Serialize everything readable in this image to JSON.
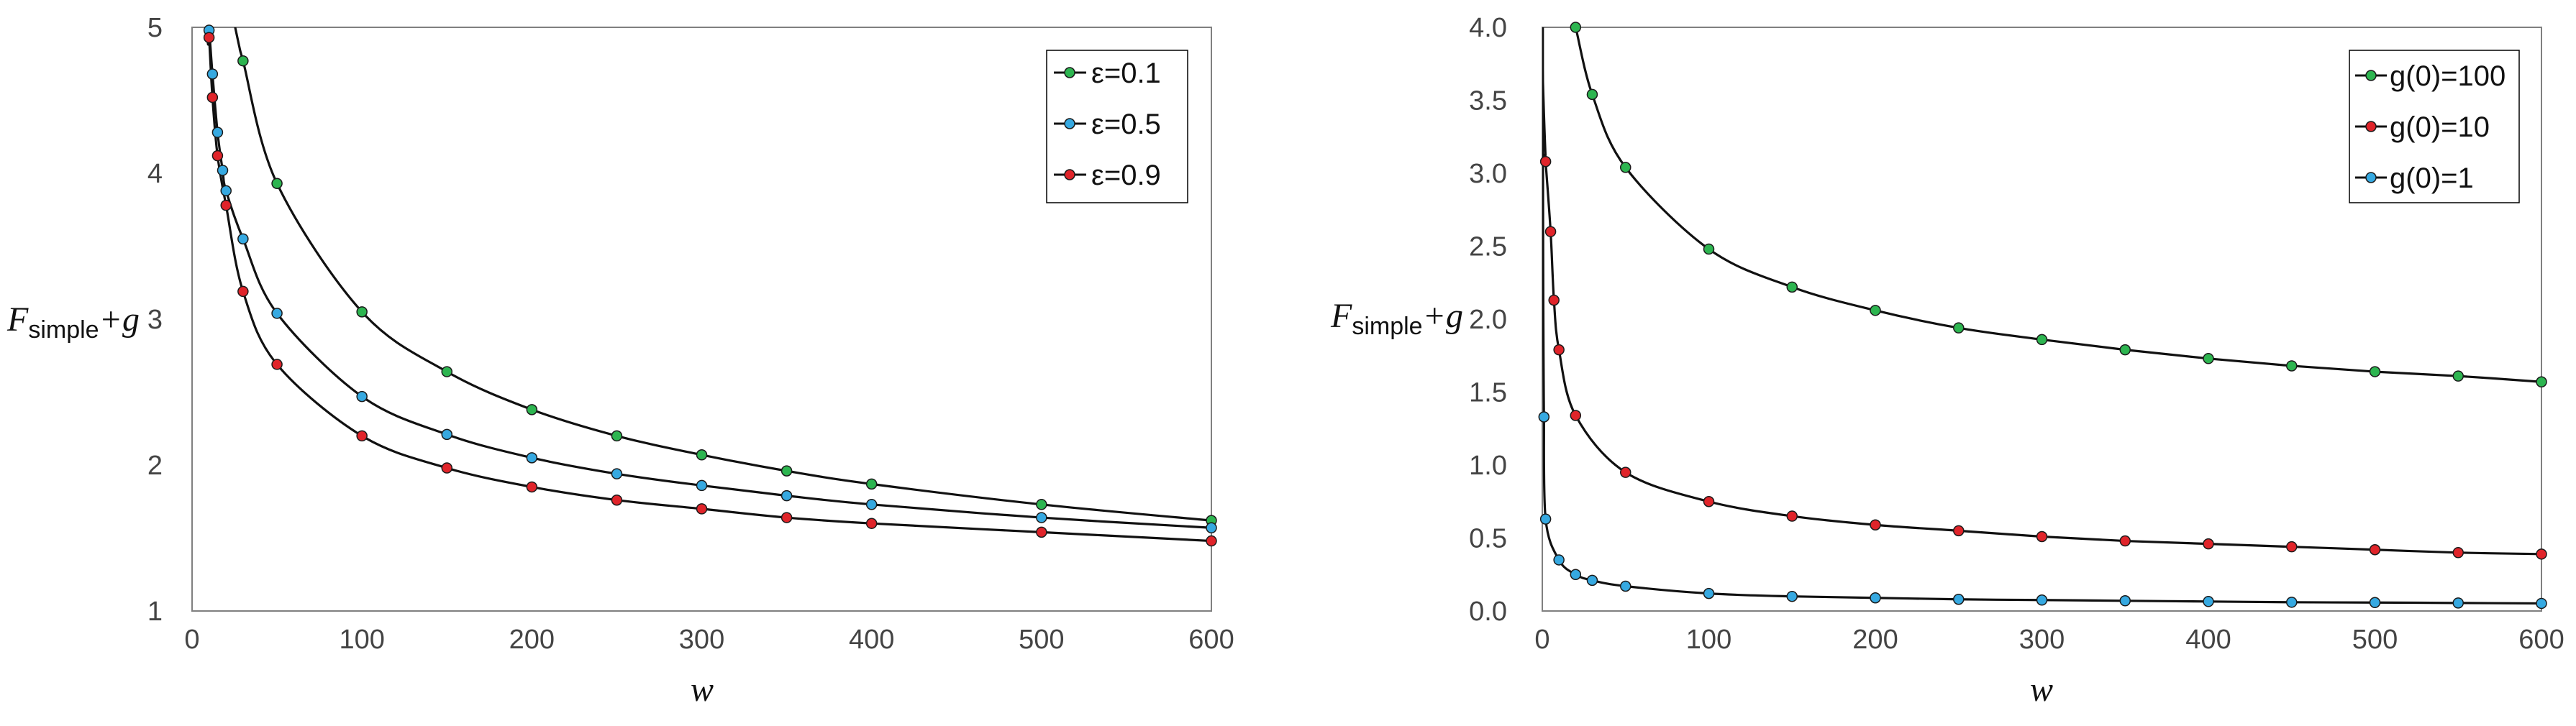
{
  "colors": {
    "green": "#2db550",
    "blue": "#36a9e1",
    "red": "#e0242a",
    "line": "#111111",
    "axis": "#808080"
  },
  "chart_data": [
    {
      "type": "line",
      "xlabel": "w",
      "ylabel_main": "F",
      "ylabel_sub": "simple",
      "ylabel_tail": "+g",
      "xlim": [
        0,
        600
      ],
      "ylim": [
        1,
        5
      ],
      "xticks": [
        "0",
        "100",
        "200",
        "300",
        "400",
        "500",
        "600"
      ],
      "yticks": [
        "1",
        "2",
        "3",
        "4",
        "5"
      ],
      "legend_position": "top-right",
      "series": [
        {
          "name": "ε=0.1",
          "color": "green",
          "x": [
            30,
            50,
            100,
            150,
            200,
            250,
            300,
            350,
            400,
            500,
            600
          ],
          "y": [
            4.77,
            3.93,
            3.05,
            2.64,
            2.38,
            2.2,
            2.07,
            1.96,
            1.87,
            1.73,
            1.62
          ]
        },
        {
          "name": "ε=0.5",
          "color": "blue",
          "x": [
            10,
            12,
            15,
            18,
            20,
            30,
            50,
            100,
            150,
            200,
            250,
            300,
            350,
            400,
            500,
            600
          ],
          "y": [
            4.98,
            4.68,
            4.28,
            4.02,
            3.88,
            3.55,
            3.04,
            2.47,
            2.21,
            2.05,
            1.94,
            1.86,
            1.79,
            1.73,
            1.64,
            1.57
          ]
        },
        {
          "name": "ε=0.9",
          "color": "red",
          "x": [
            10,
            12,
            15,
            20,
            30,
            50,
            100,
            150,
            200,
            250,
            300,
            350,
            400,
            500,
            600
          ],
          "y": [
            4.93,
            4.52,
            4.12,
            3.78,
            3.19,
            2.69,
            2.2,
            1.98,
            1.85,
            1.76,
            1.7,
            1.64,
            1.6,
            1.54,
            1.48
          ]
        }
      ]
    },
    {
      "type": "line",
      "xlabel": "w",
      "ylabel_main": "F",
      "ylabel_sub": "simple",
      "ylabel_tail": "+g",
      "xlim": [
        0,
        600
      ],
      "ylim": [
        0,
        4
      ],
      "xticks": [
        "0",
        "100",
        "200",
        "300",
        "400",
        "500",
        "600"
      ],
      "yticks": [
        "0.0",
        "0.5",
        "1.0",
        "1.5",
        "2.0",
        "2.5",
        "3.0",
        "3.5",
        "4.0"
      ],
      "legend_position": "top-right",
      "series": [
        {
          "name": "g(0)=100",
          "color": "green",
          "x": [
            20,
            30,
            50,
            100,
            150,
            200,
            250,
            300,
            350,
            400,
            450,
            500,
            550,
            600
          ],
          "y": [
            4.0,
            3.54,
            3.04,
            2.48,
            2.22,
            2.06,
            1.94,
            1.86,
            1.79,
            1.73,
            1.68,
            1.64,
            1.61,
            1.57
          ]
        },
        {
          "name": "g(0)=10",
          "color": "red",
          "x": [
            2,
            5,
            7,
            10,
            20,
            50,
            100,
            150,
            200,
            250,
            300,
            350,
            400,
            450,
            500,
            550,
            600
          ],
          "y": [
            3.08,
            2.6,
            2.13,
            1.79,
            1.34,
            0.95,
            0.75,
            0.65,
            0.59,
            0.55,
            0.51,
            0.48,
            0.46,
            0.44,
            0.42,
            0.4,
            0.39
          ]
        },
        {
          "name": "g(0)=1",
          "color": "blue",
          "x": [
            1,
            2,
            10,
            20,
            30,
            50,
            100,
            150,
            200,
            250,
            300,
            350,
            400,
            450,
            500,
            550,
            600
          ],
          "y": [
            1.33,
            0.63,
            0.35,
            0.25,
            0.21,
            0.17,
            0.12,
            0.1,
            0.09,
            0.08,
            0.075,
            0.07,
            0.065,
            0.06,
            0.058,
            0.055,
            0.052
          ]
        }
      ]
    }
  ]
}
